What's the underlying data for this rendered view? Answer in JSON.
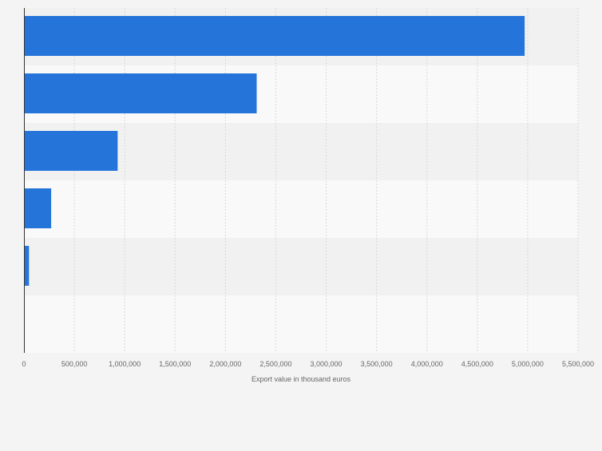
{
  "chart_data": {
    "type": "bar",
    "orientation": "horizontal",
    "title": "",
    "categories": [
      "",
      "",
      "",
      "",
      "",
      ""
    ],
    "values": [
      4970000,
      2310000,
      930000,
      270000,
      50000,
      0
    ],
    "xlabel": "Export value in thousand euros",
    "ylabel": "",
    "xlim": [
      0,
      5500000
    ],
    "x_ticks": [
      0,
      500000,
      1000000,
      1500000,
      2000000,
      2500000,
      3000000,
      3500000,
      4000000,
      4500000,
      5000000,
      5500000
    ],
    "x_tick_labels": [
      "0",
      "500,000",
      "1,000,000",
      "1,500,000",
      "2,000,000",
      "2,500,000",
      "3,000,000",
      "3,500,000",
      "4,000,000",
      "4,500,000",
      "5,000,000",
      "5,500,000"
    ],
    "grid": true,
    "legend": "none",
    "bar_color": "#2574d9",
    "band_colors": [
      "#f1f1f1",
      "#f9f9f9"
    ],
    "background_color": "#f4f4f4",
    "grid_color": "#d8d8d8",
    "axis_color": "#333333",
    "text_color": "#666666"
  }
}
